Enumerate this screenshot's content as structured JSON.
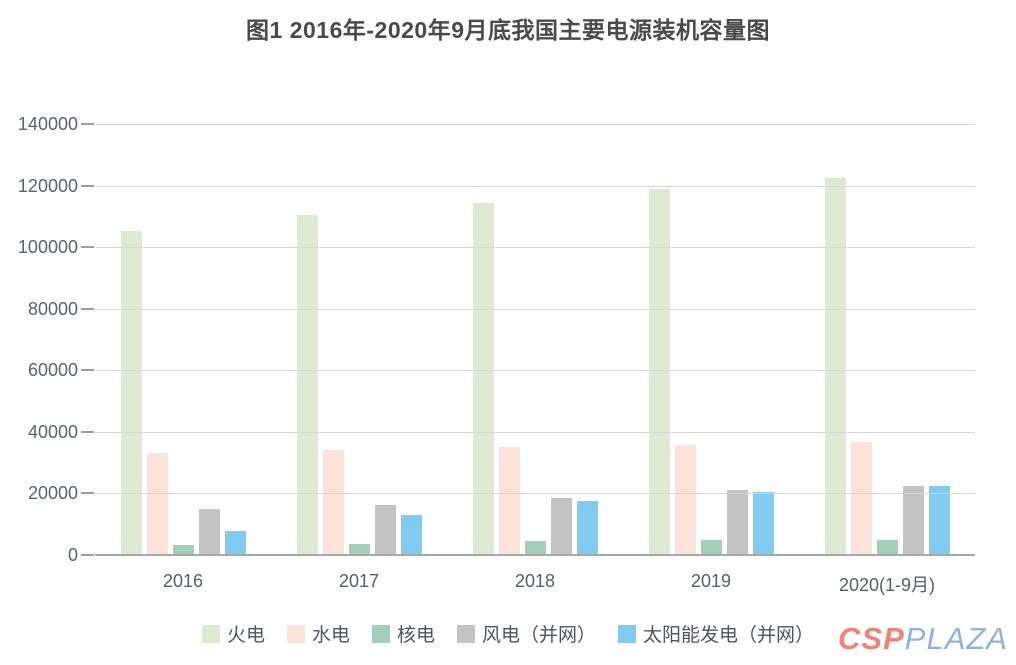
{
  "title": "图1 2016年-2020年9月底我国主要电源装机容量图",
  "watermark": {
    "csp": "CSP",
    "plaza": "PLAZA"
  },
  "chart_data": {
    "type": "bar",
    "title": "图1 2016年-2020年9月底我国主要电源装机容量图",
    "categories": [
      "2016",
      "2017",
      "2018",
      "2019",
      "2020(1-9月)"
    ],
    "series": [
      {
        "key": "thermal-power",
        "name": "火电",
        "color": "#dcead2",
        "values": [
          105388,
          110604,
          114367,
          119055,
          122500
        ]
      },
      {
        "key": "hydro-power",
        "name": "水电",
        "color": "#fce3d9",
        "values": [
          33211,
          34119,
          35226,
          35640,
          36600
        ]
      },
      {
        "key": "nuclear-power",
        "name": "核电",
        "color": "#a2cfba",
        "values": [
          3364,
          3582,
          4466,
          4874,
          5000
        ]
      },
      {
        "key": "wind-power",
        "name": "风电（并网）",
        "color": "#c3c3c4",
        "values": [
          14864,
          16367,
          18426,
          21005,
          22300
        ]
      },
      {
        "key": "solar-power",
        "name": "太阳能发电（并网）",
        "color": "#7fccf0",
        "values": [
          7742,
          13025,
          17446,
          20468,
          22400
        ]
      }
    ],
    "xlabel": "",
    "ylabel": "",
    "ylim": [
      0,
      140000
    ],
    "yticks": [
      0,
      20000,
      40000,
      60000,
      80000,
      100000,
      120000,
      140000
    ],
    "grid": true,
    "gridline_color": "#d6d6d6",
    "axis_line_color": "#a8a8a8",
    "legend_position": "bottom"
  }
}
